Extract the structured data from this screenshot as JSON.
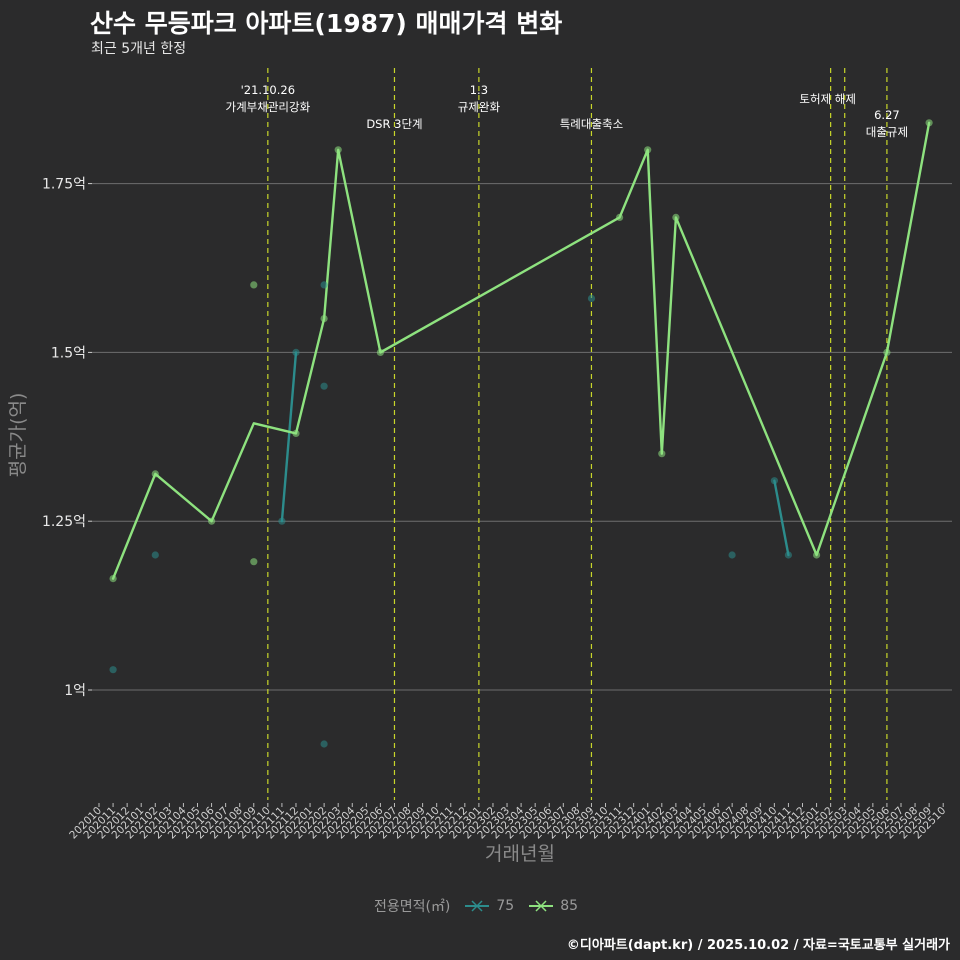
{
  "title": "산수 무등파크 아파트(1987) 매매가격 변화",
  "subtitle": "최근 5개년 한정",
  "caption": "©디아파트(dapt.kr) / 2025.10.02 / 자료=국토교통부 실거래가",
  "colors": {
    "background": "#2b2b2c",
    "grid": "#6e6e6e",
    "event_line": "#c8d62a",
    "series_75": "#2c8c8c",
    "series_85": "#8ee27f"
  },
  "chart_data": {
    "type": "line",
    "xlabel": "거래년월",
    "ylabel": "평균가(억)",
    "ylim": [
      0.85,
      1.99
    ],
    "y_ticks": [
      1.0,
      1.25,
      1.5,
      1.75
    ],
    "y_tick_labels": [
      "1억",
      "1.25억",
      "1.5억",
      "1.75억"
    ],
    "categories": [
      "202010",
      "202011",
      "202012",
      "202101",
      "202102",
      "202103",
      "202104",
      "202105",
      "202106",
      "202107",
      "202108",
      "202109",
      "202110",
      "202111",
      "202112",
      "202201",
      "202202",
      "202203",
      "202204",
      "202205",
      "202206",
      "202207",
      "202208",
      "202209",
      "202210",
      "202211",
      "202212",
      "202301",
      "202302",
      "202303",
      "202304",
      "202305",
      "202306",
      "202307",
      "202308",
      "202309",
      "202310",
      "202311",
      "202312",
      "202401",
      "202402",
      "202403",
      "202404",
      "202405",
      "202406",
      "202407",
      "202408",
      "202409",
      "202410",
      "202411",
      "202412",
      "202501",
      "202502",
      "202503",
      "202504",
      "202505",
      "202506",
      "202507",
      "202508",
      "202509",
      "202510"
    ],
    "series": [
      {
        "name": "75",
        "color": "#2c8c8c",
        "line": [
          {
            "x": "202111",
            "y": 1.25
          },
          {
            "x": "202112",
            "y": 1.5
          }
        ],
        "line2": [
          {
            "x": "202410",
            "y": 1.31
          },
          {
            "x": "202411",
            "y": 1.2
          }
        ],
        "points": [
          {
            "x": "202011",
            "y": 1.03
          },
          {
            "x": "202102",
            "y": 1.2
          },
          {
            "x": "202111",
            "y": 1.25
          },
          {
            "x": "202112",
            "y": 1.5
          },
          {
            "x": "202202",
            "y": 1.6
          },
          {
            "x": "202202",
            "y": 1.45
          },
          {
            "x": "202202",
            "y": 0.92
          },
          {
            "x": "202309",
            "y": 1.58
          },
          {
            "x": "202407",
            "y": 1.2
          },
          {
            "x": "202410",
            "y": 1.31
          },
          {
            "x": "202411",
            "y": 1.2
          }
        ]
      },
      {
        "name": "85",
        "color": "#8ee27f",
        "line": [
          {
            "x": "202011",
            "y": 1.165
          },
          {
            "x": "202102",
            "y": 1.32
          },
          {
            "x": "202106",
            "y": 1.25
          },
          {
            "x": "202109",
            "y": 1.395
          },
          {
            "x": "202112",
            "y": 1.38
          },
          {
            "x": "202202",
            "y": 1.55
          },
          {
            "x": "202203",
            "y": 1.8
          },
          {
            "x": "202206",
            "y": 1.5
          },
          {
            "x": "202311",
            "y": 1.7
          },
          {
            "x": "202401",
            "y": 1.8
          },
          {
            "x": "202402",
            "y": 1.35
          },
          {
            "x": "202403",
            "y": 1.7
          },
          {
            "x": "202501",
            "y": 1.2
          },
          {
            "x": "202506",
            "y": 1.5
          },
          {
            "x": "202509",
            "y": 1.84
          }
        ],
        "points": [
          {
            "x": "202011",
            "y": 1.165
          },
          {
            "x": "202102",
            "y": 1.32
          },
          {
            "x": "202106",
            "y": 1.25
          },
          {
            "x": "202109",
            "y": 1.6
          },
          {
            "x": "202109",
            "y": 1.19
          },
          {
            "x": "202112",
            "y": 1.38
          },
          {
            "x": "202202",
            "y": 1.55
          },
          {
            "x": "202203",
            "y": 1.8
          },
          {
            "x": "202206",
            "y": 1.5
          },
          {
            "x": "202311",
            "y": 1.7
          },
          {
            "x": "202401",
            "y": 1.8
          },
          {
            "x": "202402",
            "y": 1.35
          },
          {
            "x": "202403",
            "y": 1.7
          },
          {
            "x": "202501",
            "y": 1.2
          },
          {
            "x": "202506",
            "y": 1.5
          },
          {
            "x": "202509",
            "y": 1.84
          }
        ]
      }
    ],
    "events": [
      {
        "x": "202110",
        "lines": [
          "'21.10.26",
          "가계부채관리강화"
        ],
        "level": 0
      },
      {
        "x": "202207",
        "lines": [
          "DSR 3단계"
        ],
        "level": 1
      },
      {
        "x": "202301",
        "lines": [
          "1.3",
          "규제완화"
        ],
        "level": 0
      },
      {
        "x": "202309",
        "lines": [
          "특례대출축소"
        ],
        "level": 1
      },
      {
        "x": "202502",
        "lines": [
          "토허제 해제"
        ],
        "level": 0,
        "anchor": "502-503"
      },
      {
        "x": "202503",
        "lines": [],
        "level": 0
      },
      {
        "x": "202506",
        "lines": [
          "6.27",
          "대출규제"
        ],
        "level": 1
      }
    ],
    "legend": {
      "title": "전용면적(㎡)",
      "items": [
        {
          "label": "75",
          "color": "#2c8c8c"
        },
        {
          "label": "85",
          "color": "#8ee27f"
        }
      ],
      "position": "bottom"
    }
  }
}
